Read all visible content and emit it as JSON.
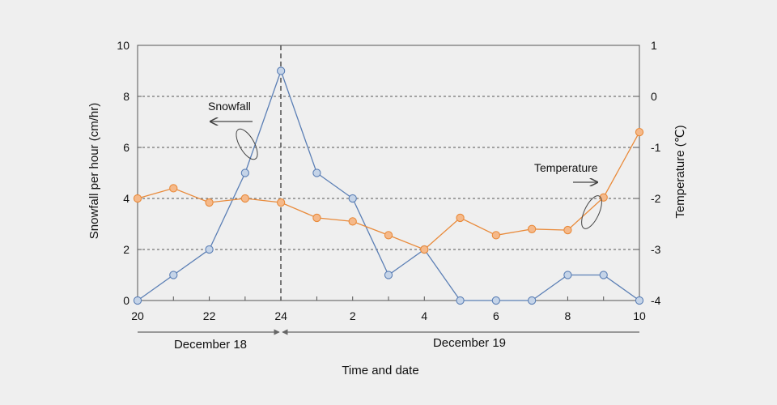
{
  "chart_data": {
    "type": "line",
    "xlabel": "Time and date",
    "ylabel_left": "Snowfall per hour (cm/hr)",
    "ylabel_right": "Temperature (℃)",
    "x_tick_labels": [
      "20",
      "22",
      "24",
      "2",
      "4",
      "6",
      "8",
      "10"
    ],
    "hours": [
      "20",
      "21",
      "22",
      "23",
      "24",
      "1",
      "2",
      "3",
      "4",
      "5",
      "6",
      "7",
      "8",
      "9",
      "10"
    ],
    "date_ranges": [
      {
        "label": "December 18",
        "from_hour": "20",
        "to_hour": "24"
      },
      {
        "label": "December 19",
        "from_hour": "24",
        "to_hour": "10"
      }
    ],
    "y_left": {
      "min": 0,
      "max": 10,
      "ticks": [
        0,
        2,
        4,
        6,
        8,
        10
      ]
    },
    "y_right": {
      "min": -4,
      "max": 1,
      "ticks": [
        -4,
        -3,
        -2,
        -1,
        0,
        1
      ]
    },
    "gridlines_dashed": true,
    "series": [
      {
        "name": "Snowfall",
        "axis": "left",
        "color": "#5b7fb5",
        "marker_fill": "#c5d4e8",
        "values": [
          0,
          1,
          2,
          5,
          9,
          5,
          4,
          1,
          2,
          0,
          0,
          0,
          1,
          1,
          0
        ]
      },
      {
        "name": "Temperature",
        "axis": "right",
        "color": "#e98a3a",
        "marker_fill": "#f5b98a",
        "values": [
          -2.0,
          -1.8,
          -2.08,
          -2.0,
          -2.08,
          -2.38,
          -2.45,
          -2.72,
          -3.0,
          -2.38,
          -2.72,
          -2.6,
          -2.62,
          -1.98,
          -0.7
        ]
      }
    ],
    "annotations": {
      "snowfall_label": "Snowfall",
      "temperature_label": "Temperature"
    },
    "vertical_marker_at": "24"
  }
}
